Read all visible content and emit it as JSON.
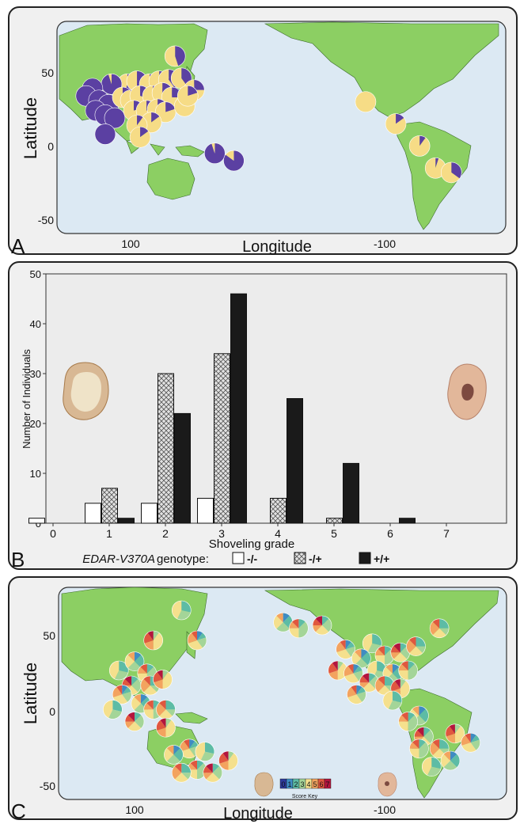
{
  "colors": {
    "ocean": "#dce9f3",
    "land": "#8ccf63",
    "derived_allele": "#5b40a2",
    "ancestral_allele": "#f6dc86",
    "bar_heterozygous_fill": "#d6d6d6",
    "bar_homozygous_derived": "#1a1a1a"
  },
  "panel_a": {
    "panel_letter": "A",
    "ylabel": "Latitude",
    "xlabel": "Longitude",
    "yticks": [
      "50",
      "0",
      "-50"
    ],
    "xticks": [
      "100",
      "-100"
    ],
    "pies": [
      {
        "lon": 128,
        "lat": 64,
        "f": 0.45
      },
      {
        "lon": 98,
        "lat": 45,
        "f": 0.55
      },
      {
        "lon": 104,
        "lat": 47,
        "f": 0.5
      },
      {
        "lon": 112,
        "lat": 45,
        "f": 0.5
      },
      {
        "lon": 118,
        "lat": 47,
        "f": 0.45
      },
      {
        "lon": 124,
        "lat": 48,
        "f": 0.4
      },
      {
        "lon": 132,
        "lat": 49,
        "f": 0.4
      },
      {
        "lon": 140,
        "lat": 41,
        "f": 0.25
      },
      {
        "lon": 88,
        "lat": 45,
        "f": 0.95
      },
      {
        "lon": 76,
        "lat": 42,
        "f": 1
      },
      {
        "lon": 72,
        "lat": 37,
        "f": 1
      },
      {
        "lon": 80,
        "lat": 34,
        "f": 1
      },
      {
        "lon": 86,
        "lat": 31,
        "f": 1
      },
      {
        "lon": 78,
        "lat": 27,
        "f": 1
      },
      {
        "lon": 84,
        "lat": 24,
        "f": 1
      },
      {
        "lon": 90,
        "lat": 22,
        "f": 1
      },
      {
        "lon": 84,
        "lat": 11,
        "f": 1
      },
      {
        "lon": 95,
        "lat": 36,
        "f": 0.3
      },
      {
        "lon": 100,
        "lat": 34,
        "f": 0.4
      },
      {
        "lon": 106,
        "lat": 37,
        "f": 0.3
      },
      {
        "lon": 114,
        "lat": 37,
        "f": 0.35
      },
      {
        "lon": 120,
        "lat": 39,
        "f": 0.3
      },
      {
        "lon": 126,
        "lat": 36,
        "f": 0.25
      },
      {
        "lon": 102,
        "lat": 27,
        "f": 0.2
      },
      {
        "lon": 110,
        "lat": 27,
        "f": 0.2
      },
      {
        "lon": 117,
        "lat": 28,
        "f": 0.2
      },
      {
        "lon": 122,
        "lat": 26,
        "f": 0.2
      },
      {
        "lon": 113,
        "lat": 19,
        "f": 0.15
      },
      {
        "lon": 104,
        "lat": 17,
        "f": 0.1
      },
      {
        "lon": 134,
        "lat": 30,
        "f": 0.15
      },
      {
        "lon": 136,
        "lat": 37,
        "f": 0.2
      },
      {
        "lon": 106,
        "lat": 9,
        "f": 0.15
      },
      {
        "lon": 153,
        "lat": -2,
        "f": 0.95
      },
      {
        "lon": 165,
        "lat": -7,
        "f": 0.85
      },
      {
        "lon": -112,
        "lat": 33,
        "f": 0
      },
      {
        "lon": -93,
        "lat": 18,
        "f": 0.15
      },
      {
        "lon": -78,
        "lat": 3,
        "f": 0.1
      },
      {
        "lon": -68,
        "lat": -12,
        "f": 0.05
      },
      {
        "lon": -58,
        "lat": -15,
        "f": 0.35
      }
    ]
  },
  "panel_b": {
    "panel_letter": "B",
    "legend_gene": "EDAR-V370A",
    "legend_rest": " genotype:",
    "legend_labels": [
      "-/-",
      "-/+",
      "+/+"
    ],
    "chart_data": {
      "type": "bar",
      "categories": [
        "0",
        "1",
        "2",
        "3",
        "4",
        "5",
        "6",
        "7"
      ],
      "series": [
        {
          "name": "-/-",
          "values": [
            1,
            4,
            4,
            5,
            0,
            0,
            0,
            0
          ]
        },
        {
          "name": "-/+",
          "values": [
            0,
            7,
            30,
            34,
            5,
            1,
            0,
            0
          ]
        },
        {
          "name": "+/+",
          "values": [
            0,
            1,
            22,
            46,
            25,
            12,
            1,
            0
          ]
        }
      ],
      "xlabel": "Shoveling grade",
      "ylabel": "Number of Individuals",
      "ylim": [
        0,
        50
      ],
      "yticks": [
        "0",
        "10",
        "20",
        "30",
        "40",
        "50"
      ]
    }
  },
  "panel_c": {
    "panel_letter": "C",
    "ylabel": "Latitude",
    "xlabel": "Longitude",
    "yticks": [
      "50",
      "0",
      "-50"
    ],
    "xticks": [
      "100",
      "-100"
    ],
    "score_key_label": "Score Key",
    "score_key_values": [
      "0",
      "1",
      "2",
      "3",
      "4",
      "5",
      "6",
      "7"
    ],
    "score_colors": [
      "#2d3a9a",
      "#3f8cc2",
      "#5dbca5",
      "#a4d598",
      "#f5e08d",
      "#f3a35f",
      "#e0573f",
      "#b3153e"
    ]
  }
}
